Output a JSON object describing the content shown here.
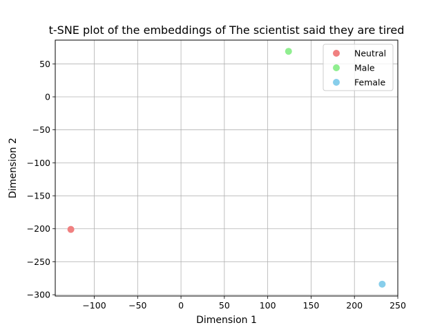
{
  "chart_data": {
    "type": "scatter",
    "title": "t-SNE plot of the embeddings of The scientist said they are tired",
    "xlabel": "Dimension 1",
    "ylabel": "Dimension 2",
    "xlim": [
      -145,
      250
    ],
    "ylim": [
      -302,
      86
    ],
    "xticks": [
      -100,
      -50,
      0,
      50,
      100,
      150,
      200,
      250
    ],
    "xtick_labels": [
      "−100",
      "−50",
      "0",
      "50",
      "100",
      "150",
      "200",
      "250"
    ],
    "yticks": [
      50,
      0,
      -50,
      -100,
      -150,
      -200,
      -250,
      -300
    ],
    "ytick_labels": [
      "50",
      "0",
      "−50",
      "−100",
      "−150",
      "−200",
      "−250",
      "−300"
    ],
    "grid": true,
    "legend_position": "top-right",
    "series": [
      {
        "name": "Neutral",
        "color": "#f08080",
        "x": [
          -127
        ],
        "y": [
          -201
        ]
      },
      {
        "name": "Male",
        "color": "#90ee90",
        "x": [
          124
        ],
        "y": [
          69
        ]
      },
      {
        "name": "Female",
        "color": "#87ceeb",
        "x": [
          232
        ],
        "y": [
          -284
        ]
      }
    ]
  }
}
